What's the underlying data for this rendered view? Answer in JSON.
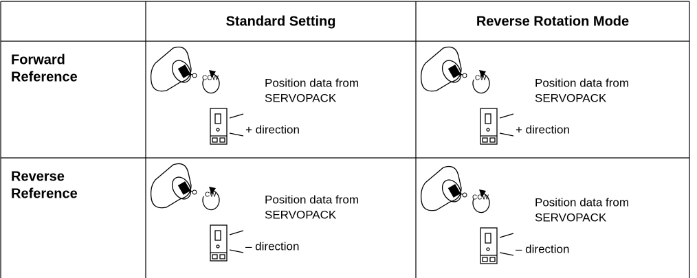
{
  "table": {
    "header": [
      "Standard Setting",
      "Reverse Rotation Mode"
    ],
    "rows": [
      {
        "label": [
          "Forward",
          "Reference"
        ],
        "cells": [
          {
            "rotation": "CCW",
            "text": [
              "Position data from",
              "SERVOPACK"
            ],
            "direction": "+ direction"
          },
          {
            "rotation": "CW",
            "text": [
              "Position data from",
              "SERVOPACK"
            ],
            "direction": "+ direction"
          }
        ]
      },
      {
        "label": [
          "Reverse",
          "Reference"
        ],
        "cells": [
          {
            "rotation": "CW",
            "text": [
              "Position data from",
              "SERVOPACK"
            ],
            "direction": "– direction"
          },
          {
            "rotation": "CCW",
            "text": [
              "Position data from",
              "SERVOPACK"
            ],
            "direction": "– direction"
          }
        ]
      }
    ]
  }
}
